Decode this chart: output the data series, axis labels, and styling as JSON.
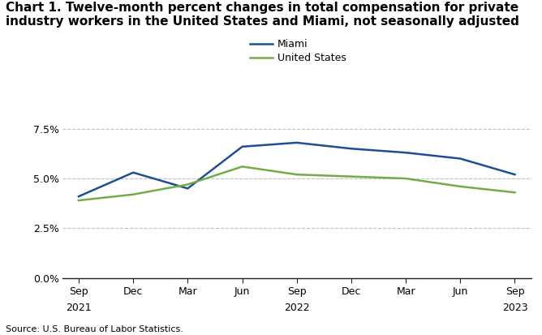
{
  "title_line1": "Chart 1. Twelve-month percent changes in total compensation for private",
  "title_line2": "industry workers in the United States and Miami, not seasonally adjusted",
  "x_labels_line1": [
    "Sep",
    "Dec",
    "Mar",
    "Jun",
    "Sep",
    "Dec",
    "Mar",
    "Jun",
    "Sep"
  ],
  "x_labels_line2": [
    "2021",
    "",
    "",
    "",
    "2022",
    "",
    "",
    "",
    "2023"
  ],
  "miami_values": [
    4.1,
    5.3,
    4.5,
    6.6,
    6.8,
    6.5,
    6.3,
    6.0,
    5.2
  ],
  "us_values": [
    3.9,
    4.2,
    4.7,
    5.6,
    5.2,
    5.1,
    5.0,
    4.6,
    4.3
  ],
  "miami_color": "#1f4e99",
  "us_color": "#70ad47",
  "ylim": [
    0.0,
    8.75
  ],
  "yticks": [
    0.0,
    2.5,
    5.0,
    7.5
  ],
  "ytick_labels": [
    "0.0%",
    "2.5%",
    "5.0%",
    "7.5%"
  ],
  "source": "Source: U.S. Bureau of Labor Statistics.",
  "legend_labels": [
    "Miami",
    "United States"
  ],
  "grid_color": "#c0c0c0",
  "line_width": 1.8,
  "title_fontsize": 11,
  "tick_fontsize": 9,
  "legend_fontsize": 9,
  "source_fontsize": 8
}
